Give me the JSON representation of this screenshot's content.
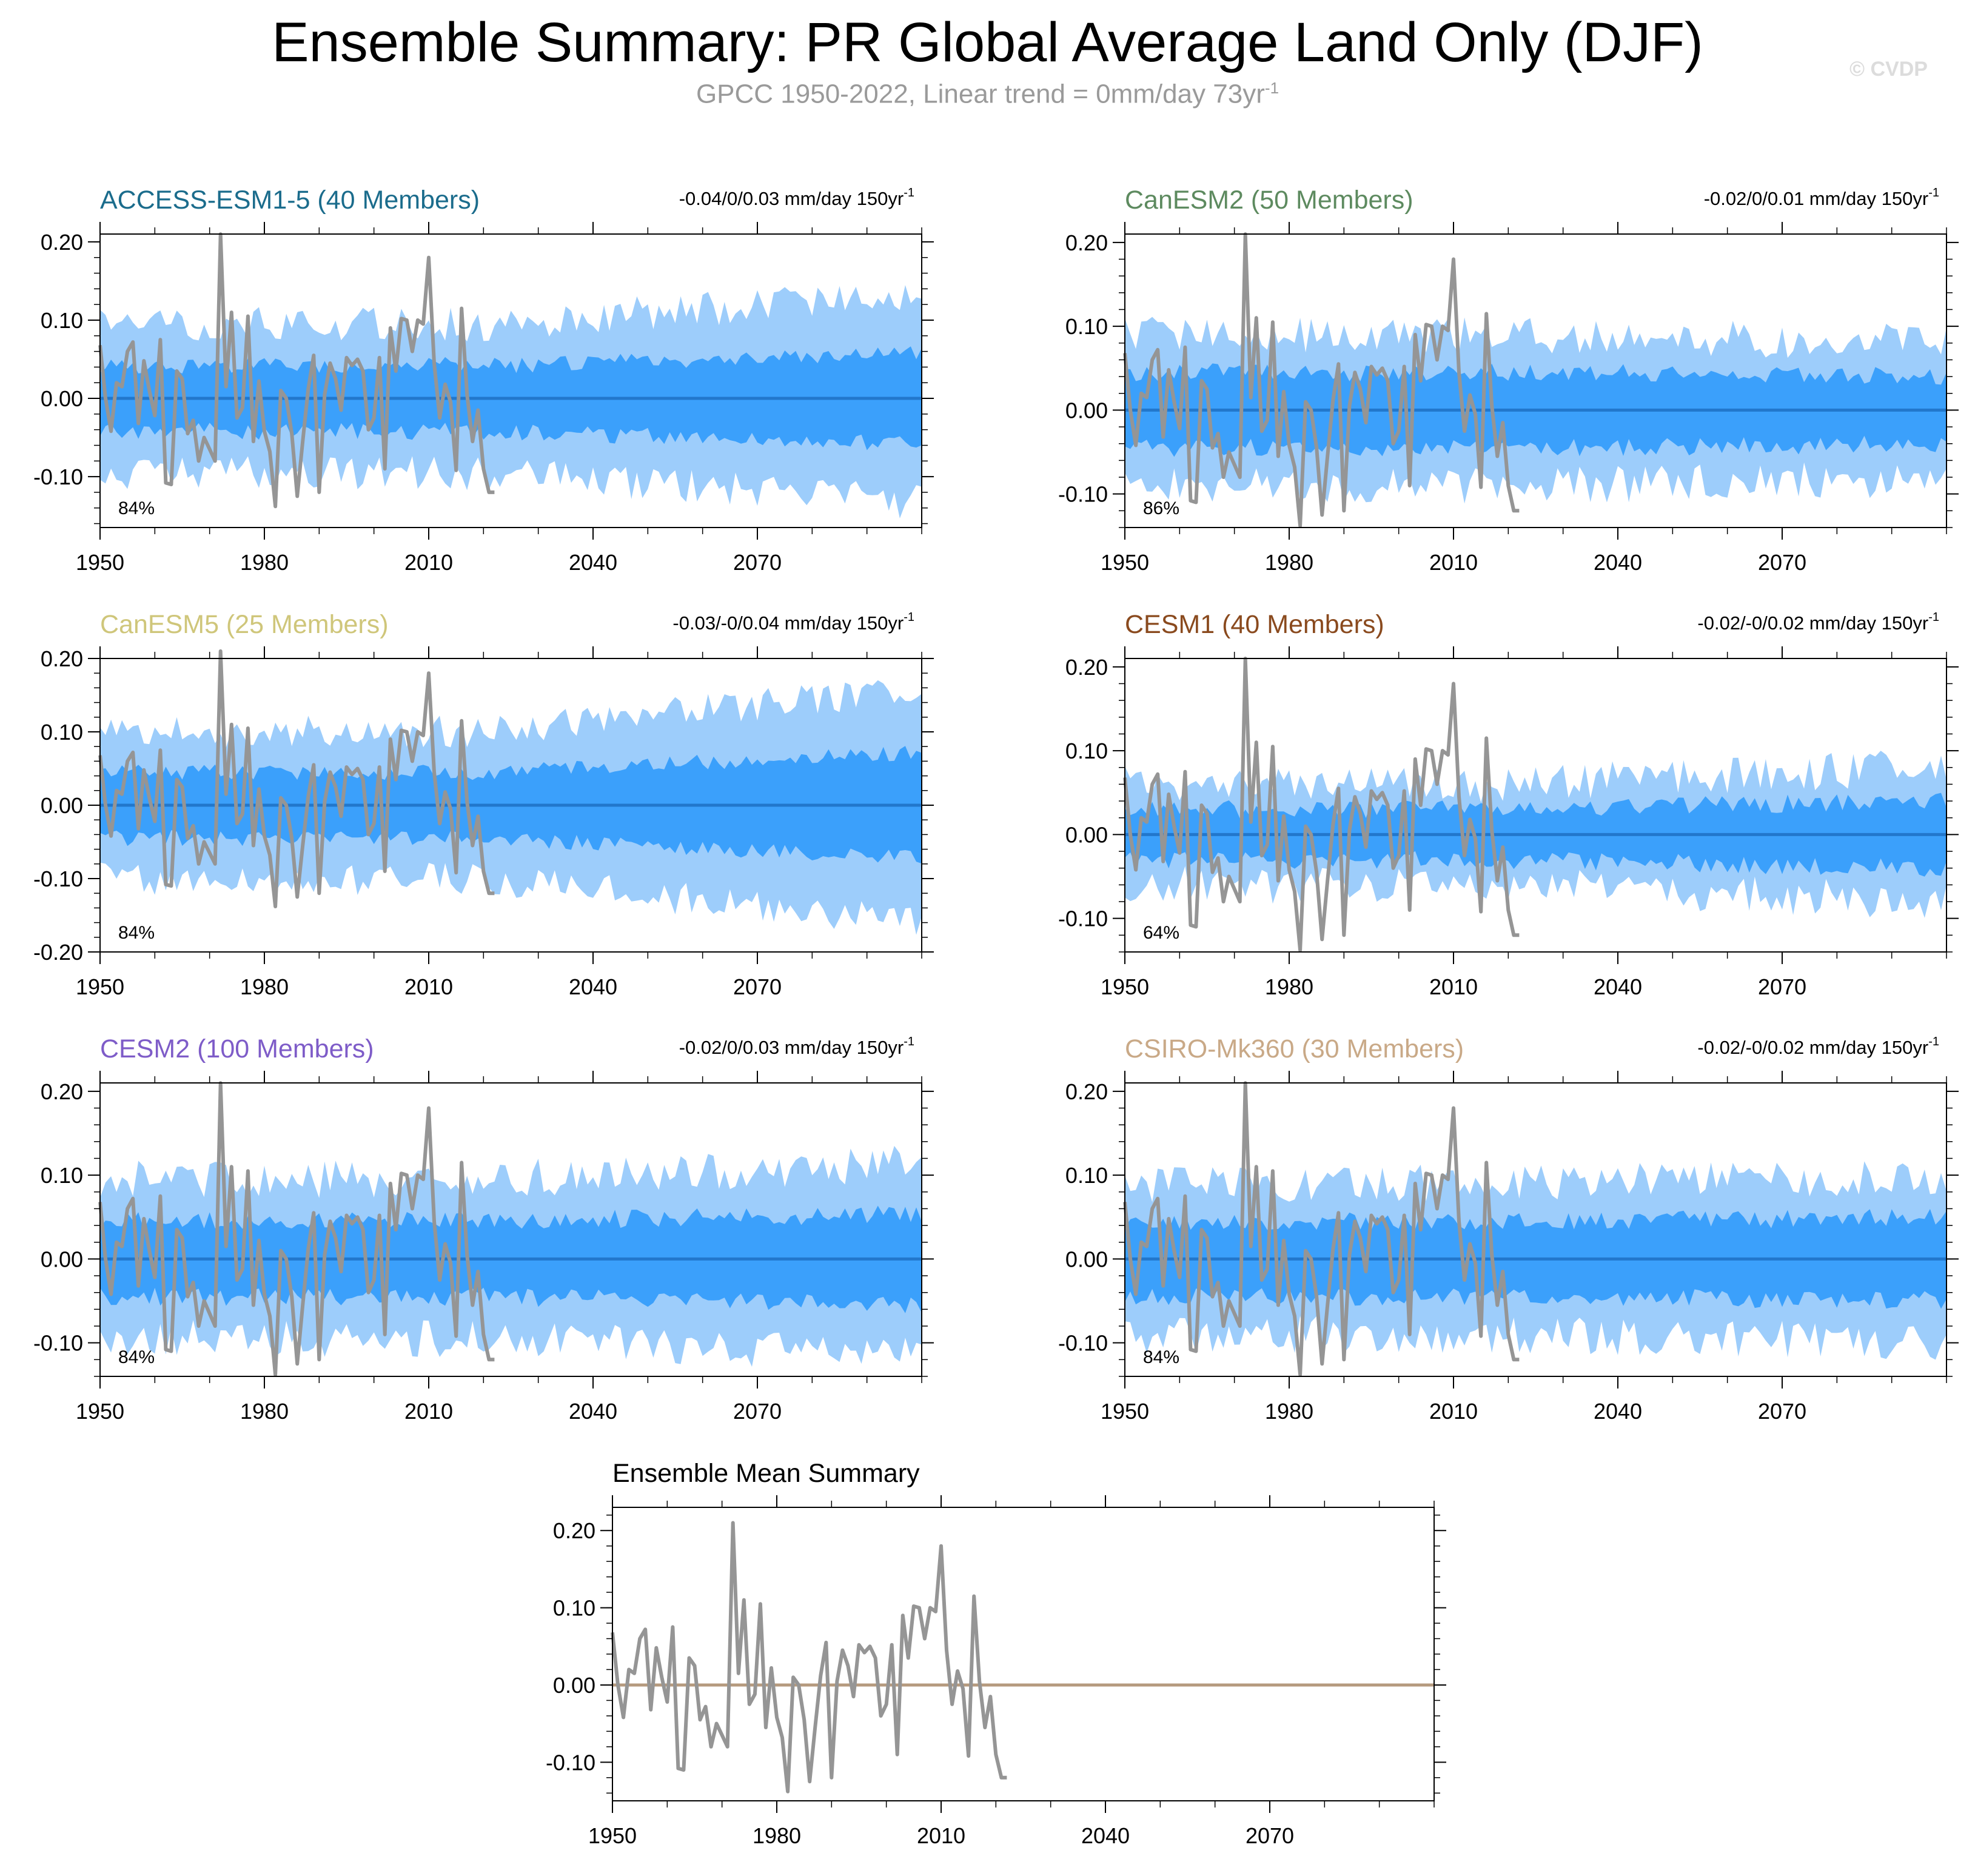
{
  "header": {
    "title": "Ensemble Summary: PR Global Average Land Only (DJF)",
    "subtitle_main": "GPCC 1950-2022, Linear trend = 0mm/day 73yr",
    "subtitle_sup": "-1",
    "watermark": "© CVDP"
  },
  "colors": {
    "outer_band": "#9dcdfb",
    "inner_band": "#3ba0fb",
    "ensemble_mean_line": "#2277cc",
    "observations_line": "#959595",
    "summary_mean_line": "#b59a7e"
  },
  "chart_data": [
    {
      "type": "area",
      "title": "ACCESS-ESM1-5 (40 Members)",
      "title_color": "#1b6c8c",
      "trend": "-0.04/0/0.03 mm/day 150yr",
      "trend_sup": "-1",
      "pct": "84%",
      "ylim": [
        -0.165,
        0.21
      ],
      "yticks": [
        "0.20",
        "0.10",
        "0.00",
        "-0.10"
      ],
      "ytick_values": [
        0.2,
        0.1,
        0.0,
        -0.1
      ],
      "xticks": [
        "1950",
        "1980",
        "2010",
        "2040",
        "2070"
      ],
      "xlim": [
        1950,
        2100
      ],
      "inner_half": 0.042,
      "outer_half": 0.095,
      "late_growth": 0.4,
      "seed": 11
    },
    {
      "type": "area",
      "title": "CanESM2 (50 Members)",
      "title_color": "#5d8a5f",
      "trend": "-0.02/0/0.01 mm/day 150yr",
      "trend_sup": "-1",
      "pct": "86%",
      "ylim": [
        -0.14,
        0.21
      ],
      "yticks": [
        "0.20",
        "0.10",
        "0.00",
        "-0.10"
      ],
      "ytick_values": [
        0.2,
        0.1,
        0.0,
        -0.1
      ],
      "xticks": [
        "1950",
        "1980",
        "2010",
        "2040",
        "2070"
      ],
      "xlim": [
        1950,
        2100
      ],
      "inner_half": 0.045,
      "outer_half": 0.09,
      "late_growth": -0.1,
      "seed": 23
    },
    {
      "type": "area",
      "title": "CanESM5 (25 Members)",
      "title_color": "#cfc67a",
      "trend": "-0.03/-0/0.04 mm/day 150yr",
      "trend_sup": "-1",
      "pct": "84%",
      "ylim": [
        -0.2,
        0.2
      ],
      "yticks": [
        "0.20",
        "0.10",
        "0.00",
        "-0.10",
        "-0.20"
      ],
      "ytick_values": [
        0.2,
        0.1,
        0.0,
        -0.1,
        -0.2
      ],
      "xticks": [
        "1950",
        "1980",
        "2010",
        "2040",
        "2070"
      ],
      "xlim": [
        1950,
        2100
      ],
      "inner_half": 0.045,
      "outer_half": 0.1,
      "late_growth": 0.6,
      "seed": 37
    },
    {
      "type": "area",
      "title": "CESM1 (40 Members)",
      "title_color": "#8a4a1e",
      "trend": "-0.02/-0/0.02 mm/day 150yr",
      "trend_sup": "-1",
      "pct": "64%",
      "ylim": [
        -0.14,
        0.21
      ],
      "yticks": [
        "0.20",
        "0.10",
        "0.00",
        "-0.10"
      ],
      "ytick_values": [
        0.2,
        0.1,
        0.0,
        -0.1
      ],
      "xticks": [
        "1950",
        "1980",
        "2010",
        "2040",
        "2070"
      ],
      "xlim": [
        1950,
        2100
      ],
      "inner_half": 0.03,
      "outer_half": 0.06,
      "late_growth": 0.35,
      "seed": 41
    },
    {
      "type": "area",
      "title": "CESM2 (100 Members)",
      "title_color": "#7e5cc8",
      "trend": "-0.02/0/0.03 mm/day 150yr",
      "trend_sup": "-1",
      "pct": "84%",
      "ylim": [
        -0.14,
        0.21
      ],
      "yticks": [
        "0.20",
        "0.10",
        "0.00",
        "-0.10"
      ],
      "ytick_values": [
        0.2,
        0.1,
        0.0,
        -0.1
      ],
      "xticks": [
        "1950",
        "1980",
        "2010",
        "2040",
        "2070"
      ],
      "xlim": [
        1950,
        2100
      ],
      "inner_half": 0.045,
      "outer_half": 0.095,
      "late_growth": 0.2,
      "seed": 53
    },
    {
      "type": "area",
      "title": "CSIRO-Mk360 (30 Members)",
      "title_color": "#c9a987",
      "trend": "-0.02/-0/0.02 mm/day 150yr",
      "trend_sup": "-1",
      "pct": "84%",
      "ylim": [
        -0.14,
        0.21
      ],
      "yticks": [
        "0.20",
        "0.10",
        "0.00",
        "-0.10"
      ],
      "ytick_values": [
        0.2,
        0.1,
        0.0,
        -0.1
      ],
      "xticks": [
        "1950",
        "1980",
        "2010",
        "2040",
        "2070"
      ],
      "xlim": [
        1950,
        2100
      ],
      "inner_half": 0.045,
      "outer_half": 0.09,
      "late_growth": 0.1,
      "seed": 67
    },
    {
      "type": "line",
      "title": "Ensemble Mean Summary",
      "title_color": "#000000",
      "trend": "",
      "trend_sup": "",
      "pct": "",
      "ylim": [
        -0.15,
        0.23
      ],
      "yticks": [
        "0.20",
        "0.10",
        "0.00",
        "-0.10"
      ],
      "ytick_values": [
        0.2,
        0.1,
        0.0,
        -0.1
      ],
      "xticks": [
        "1950",
        "1980",
        "2010",
        "2040",
        "2070"
      ],
      "xlim": [
        1950,
        2100
      ],
      "inner_half": 0,
      "outer_half": 0,
      "late_growth": 0,
      "seed": 0
    }
  ],
  "observations": {
    "name": "GPCC",
    "years": [
      1950,
      1951,
      1952,
      1953,
      1954,
      1955,
      1956,
      1957,
      1958,
      1959,
      1960,
      1961,
      1962,
      1963,
      1964,
      1965,
      1966,
      1967,
      1968,
      1969,
      1970,
      1971,
      1972,
      1973,
      1974,
      1975,
      1976,
      1977,
      1978,
      1979,
      1980,
      1981,
      1982,
      1983,
      1984,
      1985,
      1986,
      1987,
      1988,
      1989,
      1990,
      1991,
      1992,
      1993,
      1994,
      1995,
      1996,
      1997,
      1998,
      1999,
      2000,
      2001,
      2002,
      2003,
      2004,
      2005,
      2006,
      2007,
      2008,
      2009,
      2010,
      2011,
      2012,
      2013,
      2014,
      2015,
      2016,
      2017,
      2018,
      2019,
      2020,
      2021,
      2022
    ],
    "values": [
      0.068,
      0.0,
      -0.042,
      0.02,
      0.015,
      0.06,
      0.072,
      -0.032,
      0.048,
      0.01,
      -0.022,
      0.075,
      -0.108,
      -0.11,
      0.035,
      0.025,
      -0.045,
      -0.028,
      -0.08,
      -0.05,
      -0.065,
      -0.08,
      0.21,
      0.015,
      0.11,
      -0.025,
      -0.012,
      0.105,
      -0.055,
      0.022,
      -0.042,
      -0.068,
      -0.138,
      0.01,
      0.0,
      -0.045,
      -0.125,
      -0.055,
      0.012,
      0.055,
      -0.12,
      0.005,
      0.045,
      0.025,
      -0.015,
      0.052,
      0.042,
      0.05,
      0.035,
      -0.04,
      -0.025,
      0.052,
      -0.09,
      0.09,
      0.035,
      0.102,
      0.1,
      0.06,
      0.1,
      0.095,
      0.18,
      0.045,
      -0.025,
      0.018,
      -0.005,
      -0.092,
      0.115,
      0.005,
      -0.055,
      -0.015,
      -0.09,
      -0.12,
      -0.12
    ]
  }
}
